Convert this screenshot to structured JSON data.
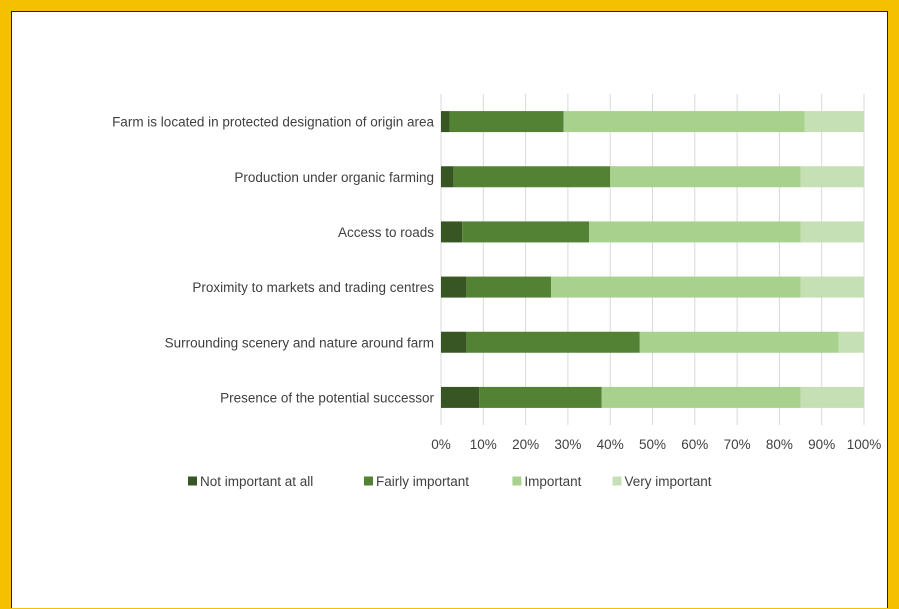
{
  "colors": {
    "border": "#F5C000",
    "grid": "#D9D9D9",
    "text": "#404040"
  },
  "chart_data": {
    "type": "bar",
    "orientation": "horizontal",
    "stacked": "100%",
    "title": "",
    "xlabel": "",
    "ylabel": "",
    "categories": [
      "Farm is located in protected designation of origin area",
      "Production under organic farming",
      "Access to roads",
      "Proximity to markets and trading centres",
      "Surrounding scenery and nature around farm",
      "Presence of the potential successor"
    ],
    "series": [
      {
        "name": "Not important at all",
        "color": "#375623",
        "values": [
          2,
          3,
          5,
          6,
          6,
          9
        ]
      },
      {
        "name": "Fairly important",
        "color": "#548235",
        "values": [
          27,
          37,
          30,
          20,
          41,
          29
        ]
      },
      {
        "name": "Important",
        "color": "#A9D18E",
        "values": [
          57,
          45,
          50,
          59,
          47,
          47
        ]
      },
      {
        "name": "Very important",
        "color": "#C5E0B4",
        "values": [
          14,
          15,
          15,
          15,
          6,
          15
        ]
      }
    ],
    "xlim": [
      0,
      100
    ],
    "xticks": [
      "0%",
      "10%",
      "20%",
      "30%",
      "40%",
      "50%",
      "60%",
      "70%",
      "80%",
      "90%",
      "100%"
    ],
    "grid": true,
    "legend": "bottom"
  }
}
